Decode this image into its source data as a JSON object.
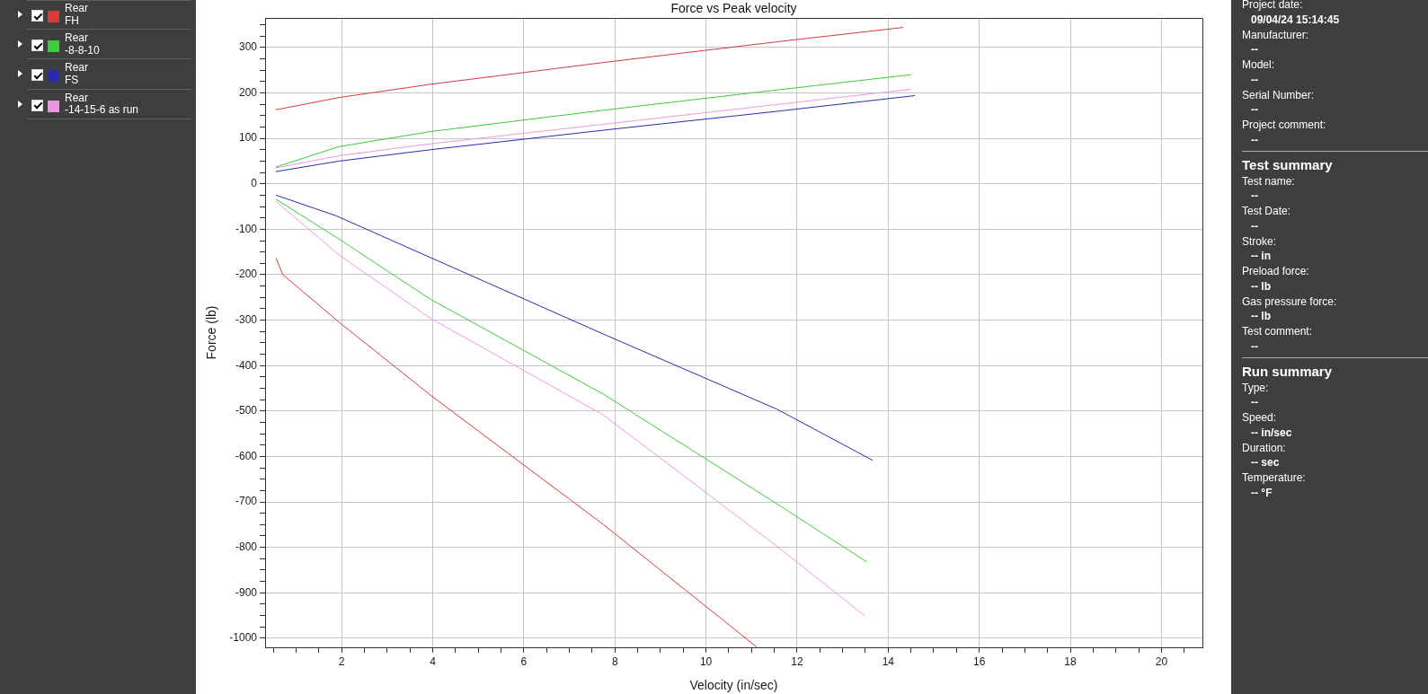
{
  "chart_data": [
    {
      "type": "line",
      "title": "Force vs Peak velocity",
      "xlabel": "Velocity (in/sec)",
      "ylabel": "Force (lb)",
      "legend": "left",
      "grid": true,
      "xlim": [
        0.32,
        20.9
      ],
      "ylim": [
        -1020,
        365
      ],
      "xticks": [
        {
          "value": 0.5,
          "label": null
        },
        {
          "value": 1,
          "label": null
        },
        {
          "value": 1.5,
          "label": null
        },
        2,
        {
          "value": 2.5,
          "label": null
        },
        {
          "value": 3,
          "label": null
        },
        {
          "value": 3.5,
          "label": null
        },
        4,
        {
          "value": 4.5,
          "label": null
        },
        {
          "value": 5,
          "label": null
        },
        {
          "value": 5.5,
          "label": null
        },
        6,
        {
          "value": 6.5,
          "label": null
        },
        {
          "value": 7,
          "label": null
        },
        {
          "value": 7.5,
          "label": null
        },
        8,
        {
          "value": 8.5,
          "label": null
        },
        {
          "value": 9,
          "label": null
        },
        {
          "value": 9.5,
          "label": null
        },
        10,
        {
          "value": 10.5,
          "label": null
        },
        {
          "value": 11,
          "label": null
        },
        {
          "value": 11.5,
          "label": null
        },
        12,
        {
          "value": 12.5,
          "label": null
        },
        {
          "value": 13,
          "label": null
        },
        {
          "value": 13.5,
          "label": null
        },
        14,
        {
          "value": 14.5,
          "label": null
        },
        {
          "value": 15,
          "label": null
        },
        {
          "value": 15.5,
          "label": null
        },
        16,
        {
          "value": 16.5,
          "label": null
        },
        {
          "value": 17,
          "label": null
        },
        {
          "value": 17.5,
          "label": null
        },
        18,
        {
          "value": 18.5,
          "label": null
        },
        {
          "value": 19,
          "label": null
        },
        {
          "value": 19.5,
          "label": null
        },
        20,
        {
          "value": 20.5,
          "label": null
        }
      ],
      "yticks": [
        -1000,
        {
          "value": -975,
          "label": null
        },
        {
          "value": -950,
          "label": null
        },
        {
          "value": -925,
          "label": null
        },
        -900,
        {
          "value": -875,
          "label": null
        },
        {
          "value": -850,
          "label": null
        },
        {
          "value": -825,
          "label": null
        },
        -800,
        {
          "value": -775,
          "label": null
        },
        {
          "value": -750,
          "label": null
        },
        {
          "value": -725,
          "label": null
        },
        -700,
        {
          "value": -675,
          "label": null
        },
        {
          "value": -650,
          "label": null
        },
        {
          "value": -625,
          "label": null
        },
        -600,
        {
          "value": -575,
          "label": null
        },
        {
          "value": -550,
          "label": null
        },
        {
          "value": -525,
          "label": null
        },
        -500,
        {
          "value": -475,
          "label": null
        },
        {
          "value": -450,
          "label": null
        },
        {
          "value": -425,
          "label": null
        },
        -400,
        {
          "value": -375,
          "label": null
        },
        {
          "value": -350,
          "label": null
        },
        {
          "value": -325,
          "label": null
        },
        -300,
        {
          "value": -275,
          "label": null
        },
        {
          "value": -250,
          "label": null
        },
        {
          "value": -225,
          "label": null
        },
        -200,
        {
          "value": -175,
          "label": null
        },
        {
          "value": -150,
          "label": null
        },
        {
          "value": -125,
          "label": null
        },
        -100,
        {
          "value": -75,
          "label": null
        },
        {
          "value": -50,
          "label": null
        },
        {
          "value": -25,
          "label": null
        },
        0,
        {
          "value": 25,
          "label": null
        },
        {
          "value": 50,
          "label": null
        },
        {
          "value": 75,
          "label": null
        },
        100,
        {
          "value": 125,
          "label": null
        },
        {
          "value": 150,
          "label": null
        },
        {
          "value": 175,
          "label": null
        },
        200,
        {
          "value": 225,
          "label": null
        },
        {
          "value": 250,
          "label": null
        },
        {
          "value": 275,
          "label": null
        },
        300,
        {
          "value": 325,
          "label": null
        },
        {
          "value": 350,
          "label": null
        }
      ],
      "series": [
        {
          "name": "Rear\nFH",
          "color": "#d83a3a",
          "x": [
            0.56,
            1.95,
            3.95,
            7.75,
            11.6,
            14.32
          ],
          "values": [
            163,
            190,
            219,
            267,
            313,
            344
          ]
        },
        {
          "color": "#d83a3a",
          "x": [
            0.56,
            0.71,
            1.95,
            3.95,
            7.75,
            11.11
          ],
          "values": [
            -164,
            -200,
            -305,
            -465,
            -750,
            -1019
          ]
        },
        {
          "name": "Rear\n-8-8-10",
          "color": "#3ccc3c",
          "x": [
            0.56,
            1.95,
            3.95,
            7.75,
            11.6,
            14.49
          ],
          "values": [
            37,
            82,
            115,
            162,
            207,
            240
          ]
        },
        {
          "color": "#3ccc3c",
          "x": [
            0.56,
            1.95,
            3.95,
            7.75,
            11.6,
            13.53
          ],
          "values": [
            -34,
            -122,
            -254,
            -463,
            -707,
            -832
          ]
        },
        {
          "name": "Rear\nFS",
          "color": "#2a2ab0",
          "x": [
            0.56,
            1.95,
            3.95,
            7.75,
            11.6,
            14.58
          ],
          "values": [
            27,
            50,
            75,
            118,
            160,
            194
          ]
        },
        {
          "color": "#2a2ab0",
          "x": [
            0.56,
            1.87,
            7.8,
            11.56,
            13.65
          ],
          "values": [
            -25,
            -70,
            -333,
            -496,
            -608
          ]
        },
        {
          "name": "Rear\n-14-15-6 as run",
          "color": "#ee96e4",
          "x": [
            0.56,
            1.95,
            3.95,
            7.75,
            11.6,
            14.5
          ],
          "values": [
            35,
            62,
            88,
            131,
            175,
            208
          ]
        },
        {
          "color": "#ee96e4",
          "x": [
            0.56,
            1.95,
            3.95,
            7.75,
            11.6,
            13.49
          ],
          "values": [
            -39,
            -157,
            -296,
            -509,
            -801,
            -951
          ]
        }
      ]
    },
    {
      "type": "other",
      "annotations": [
        "Project date:",
        "09/04/24 15:14:45",
        "Manufacturer:",
        "--",
        "Model:",
        "--",
        "Serial Number:",
        "--",
        "Project comment:",
        "--"
      ]
    },
    {
      "type": "other",
      "title": "Test summary",
      "annotations": [
        "Test name:",
        "--",
        "Test Date:",
        "--",
        "Stroke:",
        "-- in",
        "Preload force:",
        "-- lb",
        "Gas pressure force:",
        "-- lb",
        "Test comment:",
        "--"
      ]
    },
    {
      "type": "other",
      "title": "Run summary",
      "annotations": [
        "Type:",
        "--",
        "Speed:",
        "-- in/sec",
        "Duration:",
        "-- sec",
        "Temperature:",
        "-- °F"
      ]
    }
  ]
}
